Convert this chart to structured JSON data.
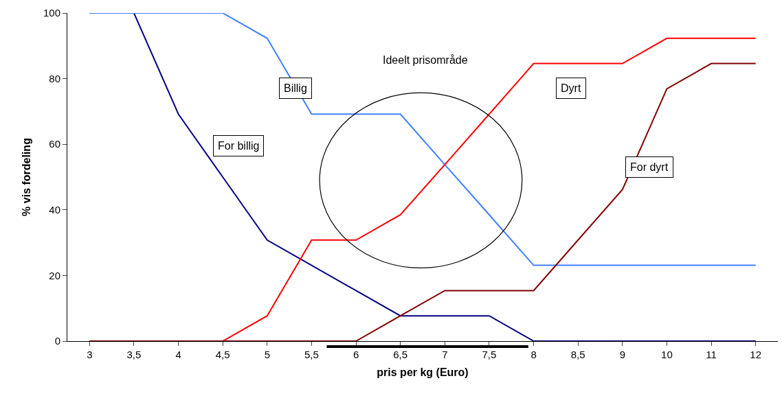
{
  "chart_data": {
    "type": "line",
    "xlabel": "pris per kg (Euro)",
    "ylabel": "% vis fordeling",
    "categories": [
      "3",
      "3,5",
      "4",
      "4,5",
      "5",
      "5,5",
      "6",
      "6,5",
      "7",
      "7,5",
      "8",
      "8,5",
      "9",
      "10",
      "11",
      "12"
    ],
    "series": [
      {
        "name": "For billig",
        "color": "#000080",
        "values": [
          100,
          100,
          69.2,
          50,
          30.8,
          23.1,
          15.4,
          7.7,
          7.7,
          7.7,
          0,
          0,
          0,
          0,
          0,
          0
        ]
      },
      {
        "name": "Billig",
        "color": "#4080ff",
        "values": [
          100,
          100,
          100,
          100,
          92.3,
          69.2,
          69.2,
          69.2,
          53.8,
          38.5,
          23.1,
          23.1,
          23.1,
          23.1,
          23.1,
          23.1
        ]
      },
      {
        "name": "Dyrt",
        "color": "#ff0000",
        "values": [
          null,
          null,
          0,
          0,
          7.7,
          30.8,
          30.8,
          38.5,
          53.8,
          69.2,
          84.6,
          84.6,
          84.6,
          92.3,
          92.3,
          92.3
        ]
      },
      {
        "name": "For dyrt",
        "color": "#800000",
        "values": [
          0,
          0,
          0,
          0,
          0,
          0,
          0,
          7.7,
          15.4,
          15.4,
          15.4,
          30.8,
          46.2,
          76.9,
          84.6,
          84.6
        ]
      }
    ],
    "annotations": [
      "Ideelt prisområde"
    ],
    "ylim": [
      0,
      100
    ],
    "yticks": [
      0,
      20,
      40,
      60,
      80,
      100
    ],
    "grid": false,
    "legend": false,
    "marker": "none",
    "line_style": "solid"
  }
}
